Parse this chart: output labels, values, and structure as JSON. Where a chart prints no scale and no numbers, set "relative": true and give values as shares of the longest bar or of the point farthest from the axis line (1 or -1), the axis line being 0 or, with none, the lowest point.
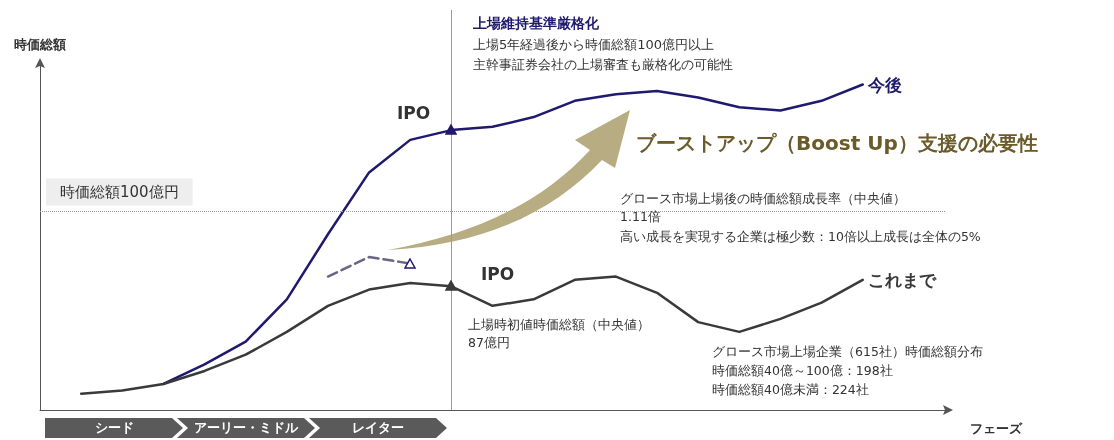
{
  "chart_data": {
    "type": "line",
    "relative": true,
    "xlabel": "フェーズ",
    "ylabel": "時価総額",
    "legend": false,
    "grid": false,
    "categories": [
      null,
      null,
      null,
      null,
      null,
      null,
      null,
      null,
      null,
      null,
      null,
      null,
      null,
      null,
      null,
      null,
      null,
      null,
      null,
      null,
      null,
      null,
      null
    ],
    "series": [
      {
        "name": "今後",
        "color": "#1f1a6e",
        "line_style": "solid",
        "marker": "none",
        "values": [
          null,
          null,
          null,
          0.08,
          0.14,
          0.21,
          0.34,
          0.54,
          0.73,
          0.83,
          0.86,
          0.87,
          0.9,
          0.95,
          0.97,
          0.98,
          0.96,
          0.93,
          0.92,
          0.95,
          1,
          null,
          null
        ]
      },
      {
        "name": "これまで",
        "color": "#3a3a3a",
        "line_style": "solid",
        "marker": "none",
        "values": [
          null,
          0.05,
          0.06,
          0.08,
          0.12,
          0.17,
          0.24,
          0.32,
          0.37,
          0.39,
          0.38,
          0.32,
          0.34,
          0.4,
          0.41,
          0.36,
          0.27,
          0.24,
          0.28,
          0.33,
          0.4,
          null,
          null
        ]
      },
      {
        "color": "#6b6485",
        "line_style": "dashed",
        "marker": "none",
        "values": [
          null,
          null,
          null,
          null,
          null,
          null,
          null,
          0.41,
          0.47,
          0.45,
          null,
          null,
          null,
          null,
          null,
          null,
          null,
          null,
          null,
          null,
          null,
          null,
          null
        ]
      }
    ],
    "ref_lines": [
      {
        "axis": "y",
        "value": 0.61,
        "label": "時価総額100億円",
        "color": "#9a9a9a",
        "line_style": "dotted"
      }
    ],
    "annotations": [
      "上場維持基準厳格化",
      "上場5年経過後から時価総額100億円以上",
      "主幹事証券会社の上場審査も厳格化の可能性",
      "IPO",
      "IPO",
      "ブーストアップ（Boost Up）支援の必要性",
      "グロース市場上場後の時価総額成長率（中央値）",
      "1.11倍",
      "高い成長を実現する企業は極少数：10倍以上成長は全体の5%",
      "上場時初値時価総額（中央値）",
      "87億円",
      "グロース市場上場企業（615社）時価総額分布",
      "時価総額40億～100億：198社",
      "時価総額40億未満：224社",
      "シード",
      "アーリー・ミドル",
      "レイター"
    ]
  }
}
